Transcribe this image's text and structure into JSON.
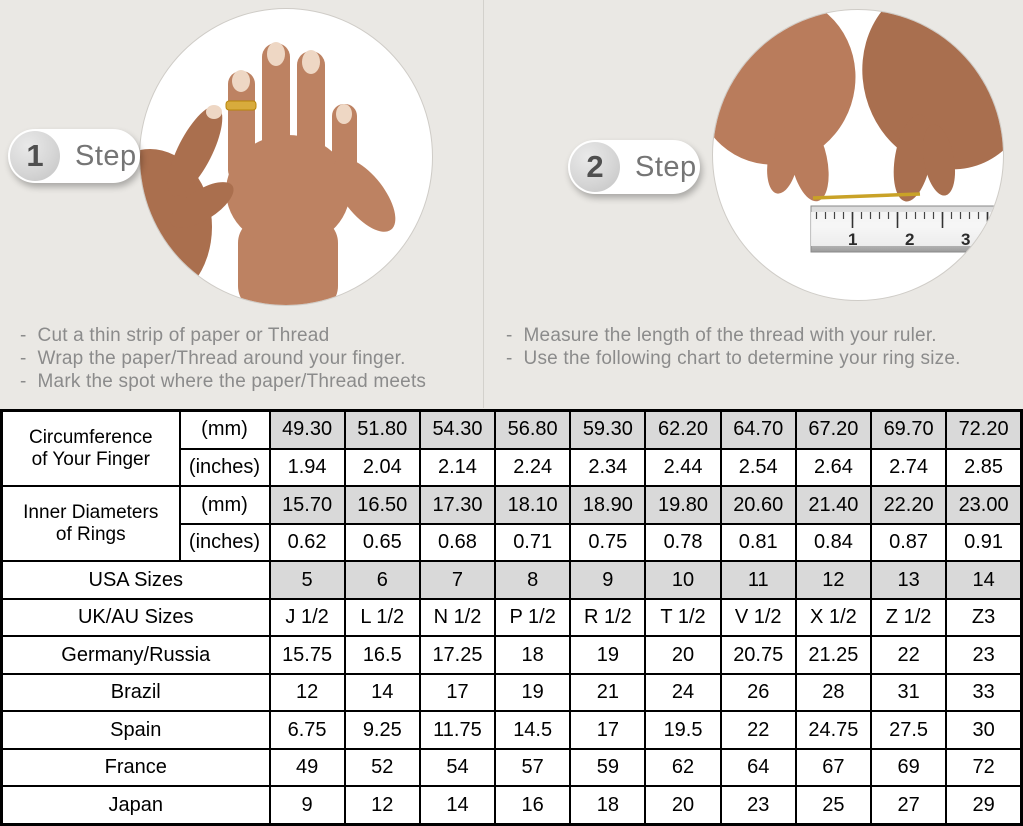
{
  "colors": {
    "background": "#eae8e4",
    "table_shaded": "#d9d9d9",
    "badge_text": "#757575",
    "instruction_text": "#8b8b8b",
    "thread_gold": "#c9a227",
    "table_border": "#000000"
  },
  "steps": [
    {
      "number": "1",
      "label": "Step",
      "photo": "hand-with-ring",
      "instructions": [
        "Cut a thin strip of paper or Thread",
        "Wrap the paper/Thread around your finger.",
        "Mark the spot where the paper/Thread meets"
      ]
    },
    {
      "number": "2",
      "label": "Step",
      "photo": "hands-measuring-thread-over-ruler",
      "ruler_numbers": [
        "1",
        "2",
        "3"
      ],
      "instructions": [
        "Measure the length of the thread with your ruler.",
        "Use the following chart to determine your ring size."
      ]
    }
  ],
  "size_chart": {
    "measure_rows": [
      {
        "label_lines": [
          "Circumference",
          "of Your Finger"
        ],
        "units": [
          {
            "unit": "(mm)",
            "shaded": true,
            "values": [
              "49.30",
              "51.80",
              "54.30",
              "56.80",
              "59.30",
              "62.20",
              "64.70",
              "67.20",
              "69.70",
              "72.20"
            ]
          },
          {
            "unit": "(inches)",
            "shaded": false,
            "values": [
              "1.94",
              "2.04",
              "2.14",
              "2.24",
              "2.34",
              "2.44",
              "2.54",
              "2.64",
              "2.74",
              "2.85"
            ]
          }
        ]
      },
      {
        "label_lines": [
          "Inner Diameters",
          "of Rings"
        ],
        "units": [
          {
            "unit": "(mm)",
            "shaded": true,
            "values": [
              "15.70",
              "16.50",
              "17.30",
              "18.10",
              "18.90",
              "19.80",
              "20.60",
              "21.40",
              "22.20",
              "23.00"
            ]
          },
          {
            "unit": "(inches)",
            "shaded": false,
            "values": [
              "0.62",
              "0.65",
              "0.68",
              "0.71",
              "0.75",
              "0.78",
              "0.81",
              "0.84",
              "0.87",
              "0.91"
            ]
          }
        ]
      }
    ],
    "size_rows": [
      {
        "label": "USA Sizes",
        "shaded": true,
        "values": [
          "5",
          "6",
          "7",
          "8",
          "9",
          "10",
          "11",
          "12",
          "13",
          "14"
        ]
      },
      {
        "label": "UK/AU Sizes",
        "shaded": false,
        "values": [
          "J 1/2",
          "L 1/2",
          "N 1/2",
          "P 1/2",
          "R 1/2",
          "T 1/2",
          "V 1/2",
          "X 1/2",
          "Z 1/2",
          "Z3"
        ]
      },
      {
        "label": "Germany/Russia",
        "shaded": false,
        "values": [
          "15.75",
          "16.5",
          "17.25",
          "18",
          "19",
          "20",
          "20.75",
          "21.25",
          "22",
          "23"
        ]
      },
      {
        "label": "Brazil",
        "shaded": false,
        "values": [
          "12",
          "14",
          "17",
          "19",
          "21",
          "24",
          "26",
          "28",
          "31",
          "33"
        ]
      },
      {
        "label": "Spain",
        "shaded": false,
        "values": [
          "6.75",
          "9.25",
          "11.75",
          "14.5",
          "17",
          "19.5",
          "22",
          "24.75",
          "27.5",
          "30"
        ]
      },
      {
        "label": "France",
        "shaded": false,
        "values": [
          "49",
          "52",
          "54",
          "57",
          "59",
          "62",
          "64",
          "67",
          "69",
          "72"
        ]
      },
      {
        "label": "Japan",
        "shaded": false,
        "values": [
          "9",
          "12",
          "14",
          "16",
          "18",
          "20",
          "23",
          "25",
          "27",
          "29"
        ]
      }
    ]
  }
}
